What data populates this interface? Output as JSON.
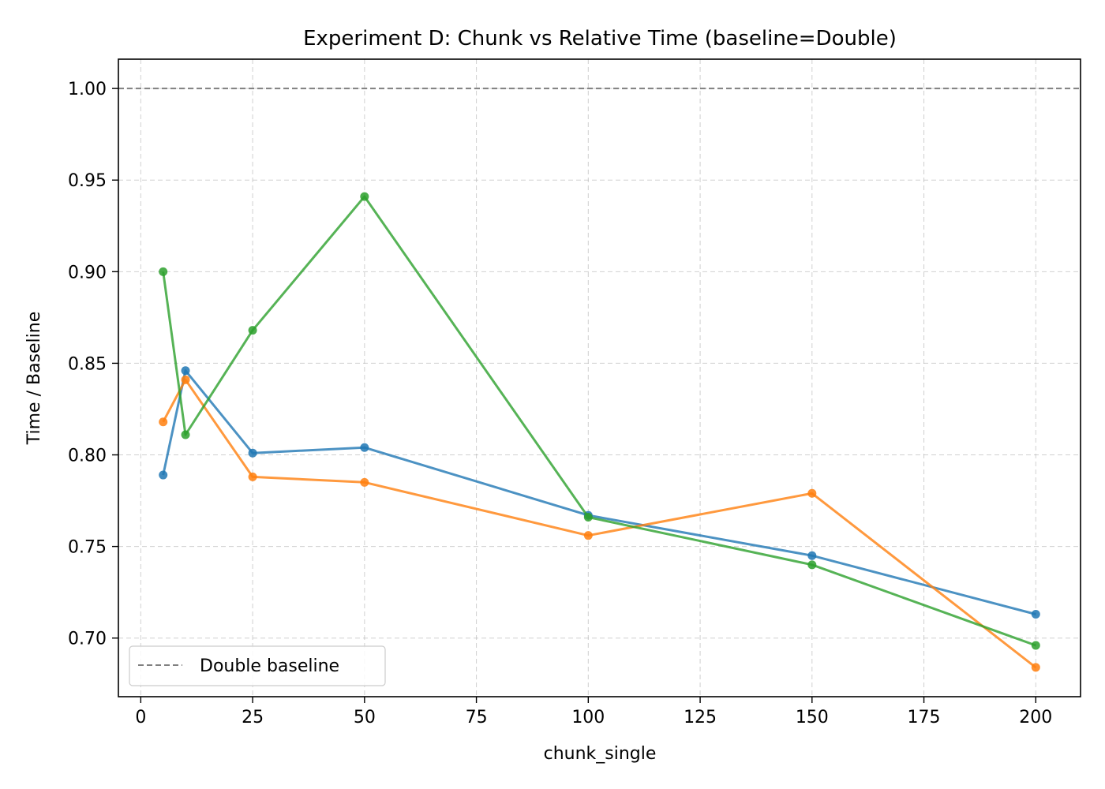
{
  "chart_data": {
    "type": "line",
    "title": "Experiment D: Chunk vs Relative Time (baseline=Double)",
    "xlabel": "chunk_single",
    "ylabel": "Time / Baseline",
    "xlim": [
      -5,
      210
    ],
    "ylim": [
      0.668,
      1.016
    ],
    "xticks": [
      0,
      25,
      50,
      75,
      100,
      125,
      150,
      175,
      200
    ],
    "xtick_labels": [
      "0",
      "25",
      "50",
      "75",
      "100",
      "125",
      "150",
      "175",
      "200"
    ],
    "yticks": [
      0.7,
      0.75,
      0.8,
      0.85,
      0.9,
      0.95,
      1.0
    ],
    "ytick_labels": [
      "0.70",
      "0.75",
      "0.80",
      "0.85",
      "0.90",
      "0.95",
      "1.00"
    ],
    "grid": true,
    "legend_position": "lower-left",
    "baseline": {
      "value": 1.0,
      "label": "Double baseline",
      "color": "#808080"
    },
    "series": [
      {
        "color": "#1f77b4",
        "x": [
          5,
          10,
          25,
          50,
          100,
          150,
          200
        ],
        "y": [
          0.789,
          0.846,
          0.801,
          0.804,
          0.767,
          0.745,
          0.713
        ]
      },
      {
        "color": "#ff7f0e",
        "x": [
          5,
          10,
          25,
          50,
          100,
          150,
          200
        ],
        "y": [
          0.818,
          0.841,
          0.788,
          0.785,
          0.756,
          0.779,
          0.684
        ]
      },
      {
        "color": "#2ca02c",
        "x": [
          5,
          10,
          25,
          50,
          100,
          150,
          200
        ],
        "y": [
          0.9,
          0.811,
          0.868,
          0.941,
          0.766,
          0.74,
          0.696
        ]
      }
    ]
  }
}
